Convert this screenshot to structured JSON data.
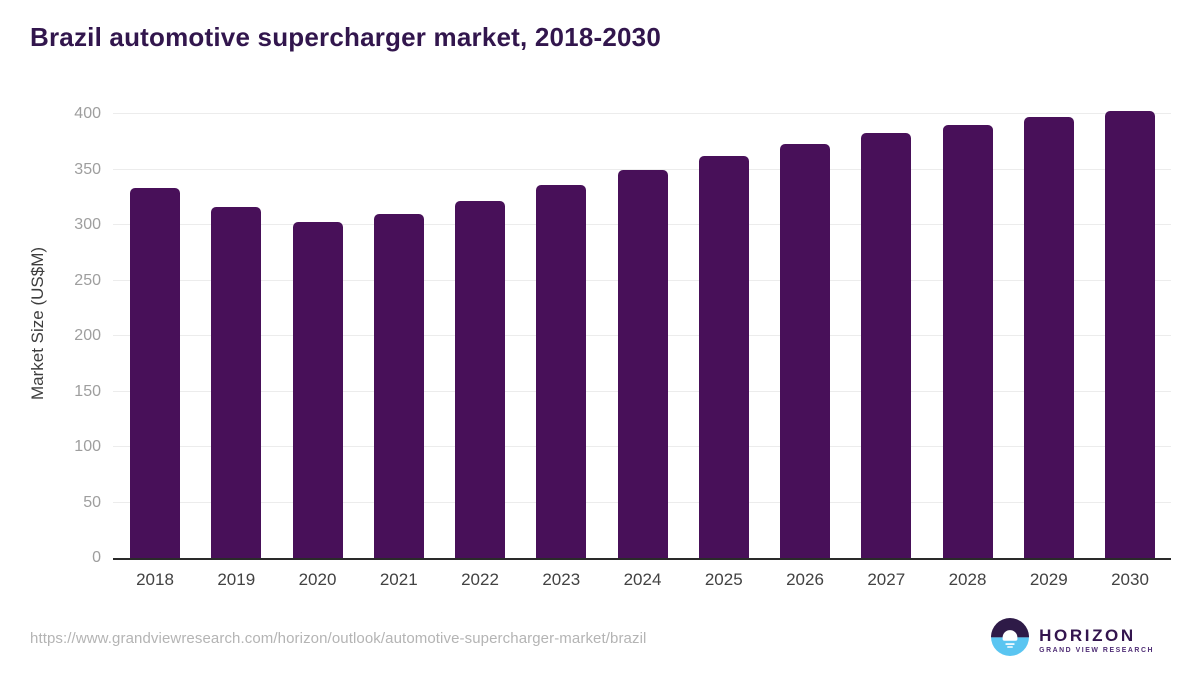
{
  "title": "Brazil automotive supercharger market, 2018-2030",
  "chart_data": {
    "type": "bar",
    "title": "Brazil automotive supercharger market, 2018-2030",
    "categories": [
      "2018",
      "2019",
      "2020",
      "2021",
      "2022",
      "2023",
      "2024",
      "2025",
      "2026",
      "2027",
      "2028",
      "2029",
      "2030"
    ],
    "values": [
      333,
      316,
      303,
      310,
      322,
      336,
      350,
      362,
      373,
      383,
      390,
      397,
      403
    ],
    "xlabel": "",
    "ylabel": "Market Size (US$M)",
    "ylim": [
      0,
      400
    ],
    "yticks": [
      0,
      50,
      100,
      150,
      200,
      250,
      300,
      350,
      400
    ],
    "grid": "horizontal",
    "legend": "none",
    "bar_color": "#481059"
  },
  "colors": {
    "title": "#32164d",
    "bar": "#481059",
    "axis_line": "#2a2a2a",
    "gridline": "#ececec",
    "y_tick_label": "#9e9e9e",
    "x_tick_label": "#424242",
    "source_url": "#b4b4b4",
    "logo_purple": "#2e1a47",
    "logo_blue": "#5ac5f1"
  },
  "footer": {
    "source_url": "https://www.grandviewresearch.com/horizon/outlook/automotive-supercharger-market/brazil",
    "logo": {
      "name": "HORIZON",
      "subtitle": "GRAND VIEW RESEARCH"
    }
  }
}
